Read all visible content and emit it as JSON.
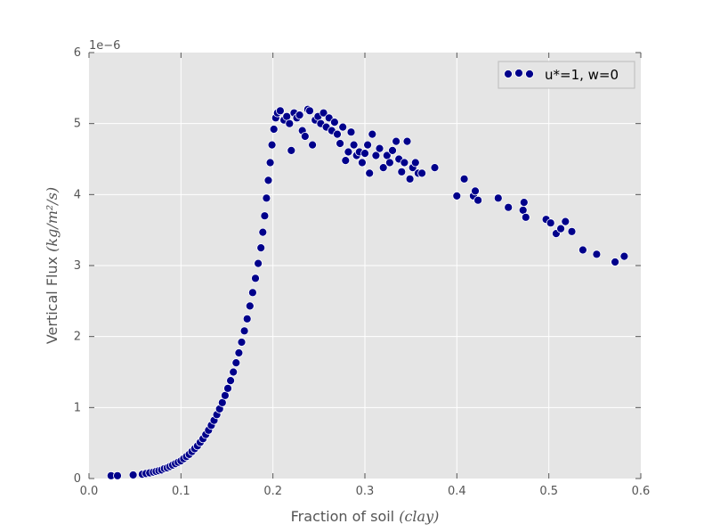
{
  "chart_data": {
    "type": "scatter",
    "xlabel": "Fraction of soil ",
    "xlabel_math": "(clay)",
    "ylabel": "Vertical Flux ",
    "ylabel_math": "(kg/m²/s)",
    "y_scale_label": "1e−6",
    "xlim": [
      0.0,
      0.6
    ],
    "ylim": [
      0,
      6
    ],
    "x_ticks": [
      "0.0",
      "0.1",
      "0.2",
      "0.3",
      "0.4",
      "0.5",
      "0.6"
    ],
    "y_ticks": [
      "0",
      "1",
      "2",
      "3",
      "4",
      "5",
      "6"
    ],
    "y_multiplier": 1e-06,
    "grid": true,
    "legend_position": "top-right",
    "series": [
      {
        "name": "u*=1, w=0",
        "color": "#00008b",
        "points": [
          [
            0.024,
            0.04
          ],
          [
            0.031,
            0.04
          ],
          [
            0.048,
            0.05
          ],
          [
            0.058,
            0.06
          ],
          [
            0.062,
            0.07
          ],
          [
            0.066,
            0.08
          ],
          [
            0.07,
            0.09
          ],
          [
            0.073,
            0.1
          ],
          [
            0.076,
            0.11
          ],
          [
            0.079,
            0.12
          ],
          [
            0.082,
            0.14
          ],
          [
            0.085,
            0.15
          ],
          [
            0.088,
            0.17
          ],
          [
            0.091,
            0.19
          ],
          [
            0.094,
            0.21
          ],
          [
            0.097,
            0.23
          ],
          [
            0.1,
            0.25
          ],
          [
            0.103,
            0.28
          ],
          [
            0.106,
            0.31
          ],
          [
            0.109,
            0.34
          ],
          [
            0.112,
            0.38
          ],
          [
            0.115,
            0.42
          ],
          [
            0.118,
            0.46
          ],
          [
            0.121,
            0.51
          ],
          [
            0.124,
            0.56
          ],
          [
            0.127,
            0.62
          ],
          [
            0.13,
            0.68
          ],
          [
            0.133,
            0.75
          ],
          [
            0.136,
            0.82
          ],
          [
            0.139,
            0.9
          ],
          [
            0.142,
            0.98
          ],
          [
            0.145,
            1.07
          ],
          [
            0.148,
            1.17
          ],
          [
            0.151,
            1.27
          ],
          [
            0.154,
            1.38
          ],
          [
            0.157,
            1.5
          ],
          [
            0.16,
            1.63
          ],
          [
            0.163,
            1.77
          ],
          [
            0.166,
            1.92
          ],
          [
            0.169,
            2.08
          ],
          [
            0.172,
            2.25
          ],
          [
            0.175,
            2.43
          ],
          [
            0.178,
            2.62
          ],
          [
            0.181,
            2.82
          ],
          [
            0.184,
            3.03
          ],
          [
            0.187,
            3.25
          ],
          [
            0.189,
            3.47
          ],
          [
            0.191,
            3.7
          ],
          [
            0.193,
            3.95
          ],
          [
            0.195,
            4.2
          ],
          [
            0.197,
            4.45
          ],
          [
            0.199,
            4.7
          ],
          [
            0.201,
            4.92
          ],
          [
            0.203,
            5.08
          ],
          [
            0.205,
            5.15
          ],
          [
            0.208,
            5.18
          ],
          [
            0.212,
            5.05
          ],
          [
            0.215,
            5.1
          ],
          [
            0.218,
            5.0
          ],
          [
            0.22,
            4.62
          ],
          [
            0.223,
            5.15
          ],
          [
            0.226,
            5.08
          ],
          [
            0.229,
            5.12
          ],
          [
            0.232,
            4.9
          ],
          [
            0.235,
            4.82
          ],
          [
            0.238,
            5.2
          ],
          [
            0.24,
            5.18
          ],
          [
            0.243,
            4.7
          ],
          [
            0.246,
            5.05
          ],
          [
            0.249,
            5.1
          ],
          [
            0.252,
            5.0
          ],
          [
            0.255,
            5.15
          ],
          [
            0.258,
            4.95
          ],
          [
            0.261,
            5.08
          ],
          [
            0.264,
            4.9
          ],
          [
            0.267,
            5.02
          ],
          [
            0.27,
            4.85
          ],
          [
            0.273,
            4.72
          ],
          [
            0.276,
            4.95
          ],
          [
            0.279,
            4.48
          ],
          [
            0.282,
            4.6
          ],
          [
            0.285,
            4.88
          ],
          [
            0.288,
            4.7
          ],
          [
            0.291,
            4.55
          ],
          [
            0.294,
            4.6
          ],
          [
            0.297,
            4.45
          ],
          [
            0.3,
            4.58
          ],
          [
            0.303,
            4.7
          ],
          [
            0.305,
            4.3
          ],
          [
            0.308,
            4.85
          ],
          [
            0.312,
            4.55
          ],
          [
            0.316,
            4.65
          ],
          [
            0.32,
            4.38
          ],
          [
            0.324,
            4.55
          ],
          [
            0.327,
            4.45
          ],
          [
            0.33,
            4.62
          ],
          [
            0.334,
            4.75
          ],
          [
            0.337,
            4.5
          ],
          [
            0.34,
            4.32
          ],
          [
            0.343,
            4.45
          ],
          [
            0.346,
            4.75
          ],
          [
            0.349,
            4.22
          ],
          [
            0.352,
            4.38
          ],
          [
            0.355,
            4.45
          ],
          [
            0.358,
            4.3
          ],
          [
            0.362,
            4.3
          ],
          [
            0.376,
            4.38
          ],
          [
            0.4,
            3.98
          ],
          [
            0.408,
            4.22
          ],
          [
            0.418,
            3.98
          ],
          [
            0.42,
            4.05
          ],
          [
            0.423,
            3.92
          ],
          [
            0.445,
            3.95
          ],
          [
            0.456,
            3.82
          ],
          [
            0.472,
            3.78
          ],
          [
            0.473,
            3.89
          ],
          [
            0.475,
            3.68
          ],
          [
            0.497,
            3.65
          ],
          [
            0.502,
            3.6
          ],
          [
            0.508,
            3.45
          ],
          [
            0.513,
            3.52
          ],
          [
            0.518,
            3.62
          ],
          [
            0.525,
            3.48
          ],
          [
            0.537,
            3.22
          ],
          [
            0.552,
            3.16
          ],
          [
            0.572,
            3.05
          ],
          [
            0.582,
            3.13
          ]
        ]
      }
    ]
  }
}
